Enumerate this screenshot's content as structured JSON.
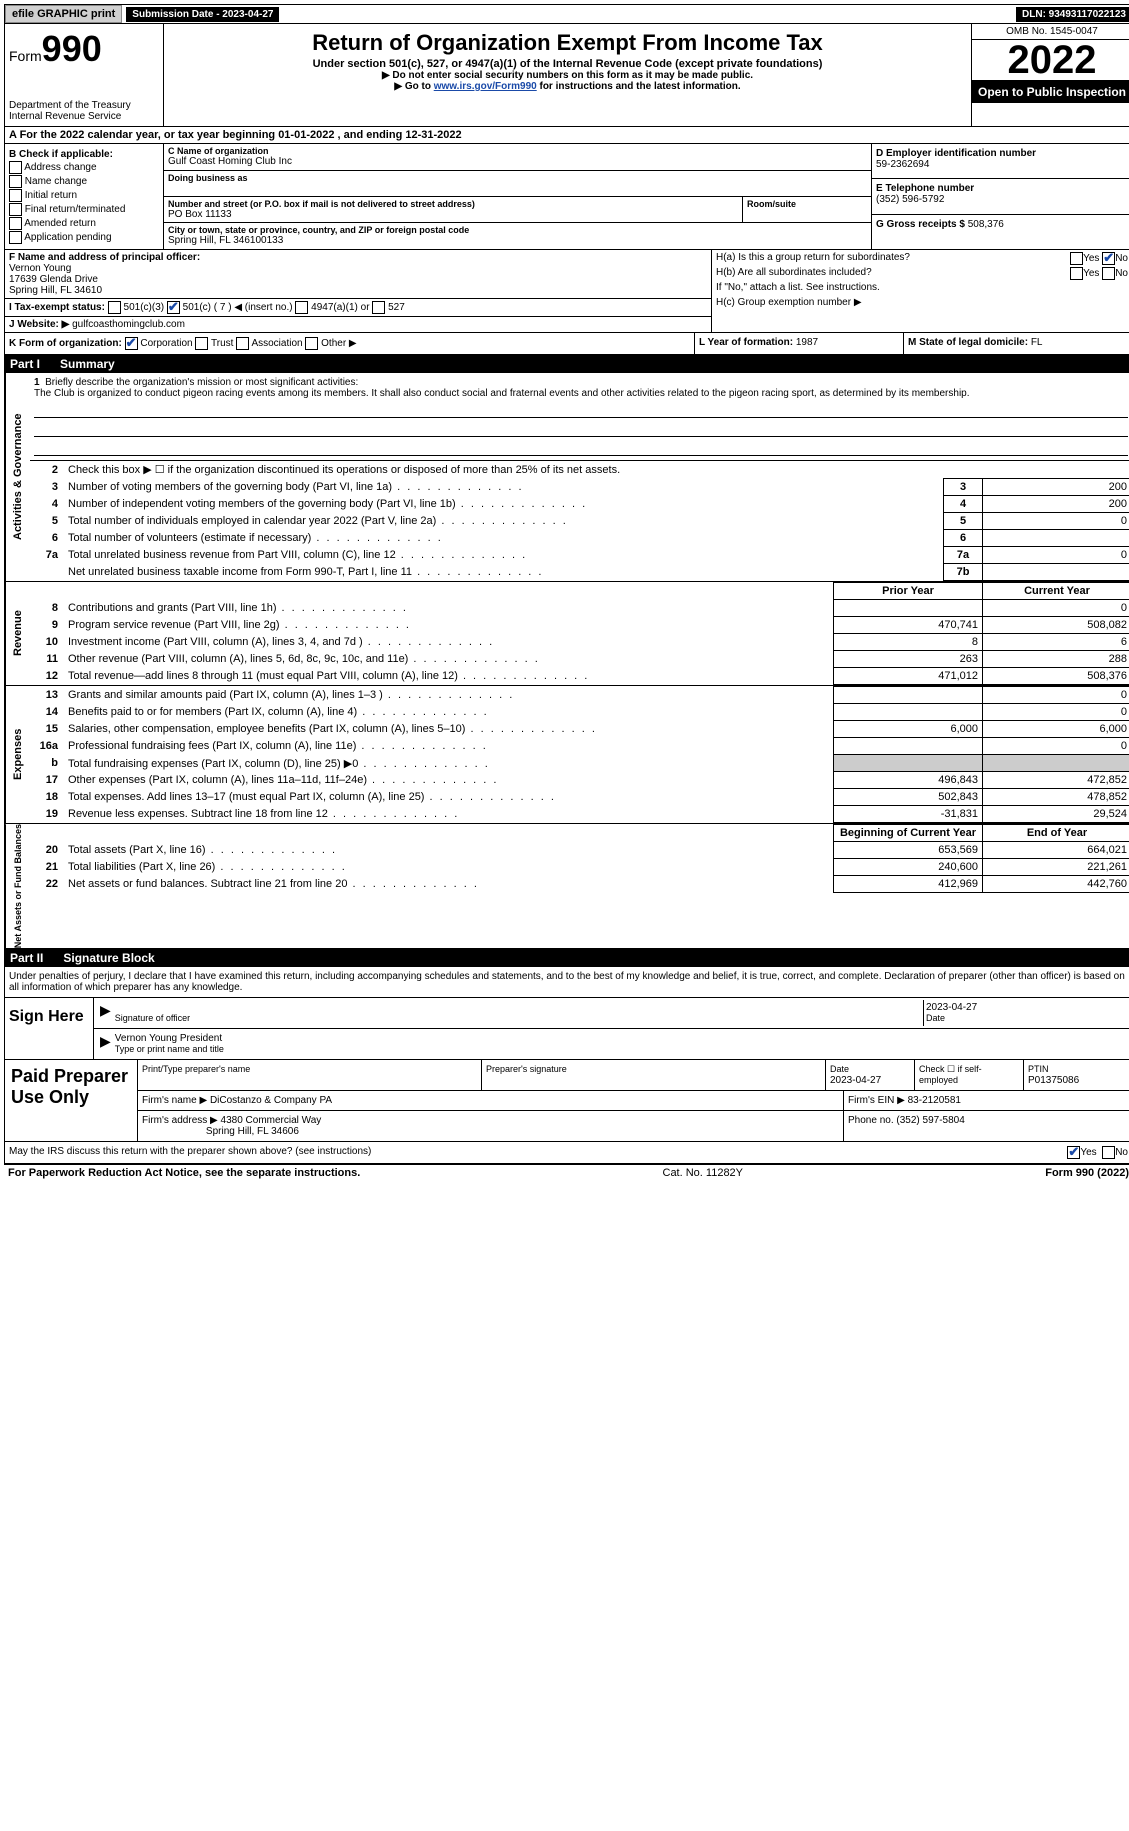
{
  "topbar": {
    "efile": "efile GRAPHIC print",
    "submission": "Submission Date - 2023-04-27",
    "dln": "DLN: 93493117022123"
  },
  "header": {
    "form_prefix": "Form",
    "form_number": "990",
    "dept": "Department of the Treasury",
    "irs": "Internal Revenue Service",
    "title": "Return of Organization Exempt From Income Tax",
    "subtitle": "Under section 501(c), 527, or 4947(a)(1) of the Internal Revenue Code (except private foundations)",
    "note1": "▶ Do not enter social security numbers on this form as it may be made public.",
    "note2_pre": "▶ Go to ",
    "note2_link": "www.irs.gov/Form990",
    "note2_post": " for instructions and the latest information.",
    "omb": "OMB No. 1545-0047",
    "year": "2022",
    "open": "Open to Public Inspection"
  },
  "row_a": "A For the 2022 calendar year, or tax year beginning 01-01-2022    , and ending 12-31-2022",
  "col_b": {
    "header": "B Check if applicable:",
    "items": [
      "Address change",
      "Name change",
      "Initial return",
      "Final return/terminated",
      "Amended return",
      "Application pending"
    ]
  },
  "col_c": {
    "name_hdr": "C Name of organization",
    "name": "Gulf Coast Homing Club Inc",
    "dba_hdr": "Doing business as",
    "addr_hdr": "Number and street (or P.O. box if mail is not delivered to street address)",
    "room_hdr": "Room/suite",
    "addr": "PO Box 11133",
    "city_hdr": "City or town, state or province, country, and ZIP or foreign postal code",
    "city": "Spring Hill, FL  346100133"
  },
  "col_d": {
    "ein_hdr": "D Employer identification number",
    "ein": "59-2362694",
    "tel_hdr": "E Telephone number",
    "tel": "(352) 596-5792",
    "gross_hdr": "G Gross receipts $",
    "gross": "508,376"
  },
  "section_f": {
    "hdr": "F  Name and address of principal officer:",
    "name": "Vernon Young",
    "addr1": "17639 Glenda Drive",
    "addr2": "Spring Hill, FL  34610"
  },
  "section_h": {
    "ha": "H(a)  Is this a group return for subordinates?",
    "hb": "H(b)  Are all subordinates included?",
    "hb_note": "If \"No,\" attach a list. See instructions.",
    "hc": "H(c)  Group exemption number ▶",
    "yes": "Yes",
    "no": "No"
  },
  "row_i": {
    "label": "I  Tax-exempt status:",
    "opt1": "501(c)(3)",
    "opt2": "501(c) ( 7 ) ◀ (insert no.)",
    "opt3": "4947(a)(1) or",
    "opt4": "527"
  },
  "row_j": {
    "label": "J  Website: ▶",
    "value": "gulfcoasthomingclub.com"
  },
  "row_k": {
    "label": "K Form of organization:",
    "corp": "Corporation",
    "trust": "Trust",
    "assoc": "Association",
    "other": "Other ▶"
  },
  "row_l": {
    "label": "L Year of formation:",
    "value": "1987"
  },
  "row_m": {
    "label": "M State of legal domicile:",
    "value": "FL"
  },
  "part1": {
    "label": "Part I",
    "title": "Summary"
  },
  "mission": {
    "num": "1",
    "label": "Briefly describe the organization's mission or most significant activities:",
    "text": "The Club is organized to conduct pigeon racing events among its members. It shall also conduct social and fraternal events and other activities related to the pigeon racing sport, as determined by its membership."
  },
  "line2": {
    "num": "2",
    "text": "Check this box ▶ ☐  if the organization discontinued its operations or disposed of more than 25% of its net assets."
  },
  "governance_rows": [
    {
      "num": "3",
      "text": "Number of voting members of the governing body (Part VI, line 1a)",
      "box": "3",
      "val": "200"
    },
    {
      "num": "4",
      "text": "Number of independent voting members of the governing body (Part VI, line 1b)",
      "box": "4",
      "val": "200"
    },
    {
      "num": "5",
      "text": "Total number of individuals employed in calendar year 2022 (Part V, line 2a)",
      "box": "5",
      "val": "0"
    },
    {
      "num": "6",
      "text": "Total number of volunteers (estimate if necessary)",
      "box": "6",
      "val": ""
    },
    {
      "num": "7a",
      "text": "Total unrelated business revenue from Part VIII, column (C), line 12",
      "box": "7a",
      "val": "0"
    },
    {
      "num": "",
      "text": "Net unrelated business taxable income from Form 990-T, Part I, line 11",
      "box": "7b",
      "val": ""
    }
  ],
  "revenue_header": {
    "prior": "Prior Year",
    "current": "Current Year"
  },
  "revenue_rows": [
    {
      "num": "8",
      "text": "Contributions and grants (Part VIII, line 1h)",
      "prior": "",
      "current": "0"
    },
    {
      "num": "9",
      "text": "Program service revenue (Part VIII, line 2g)",
      "prior": "470,741",
      "current": "508,082"
    },
    {
      "num": "10",
      "text": "Investment income (Part VIII, column (A), lines 3, 4, and 7d )",
      "prior": "8",
      "current": "6"
    },
    {
      "num": "11",
      "text": "Other revenue (Part VIII, column (A), lines 5, 6d, 8c, 9c, 10c, and 11e)",
      "prior": "263",
      "current": "288"
    },
    {
      "num": "12",
      "text": "Total revenue—add lines 8 through 11 (must equal Part VIII, column (A), line 12)",
      "prior": "471,012",
      "current": "508,376"
    }
  ],
  "expense_rows": [
    {
      "num": "13",
      "text": "Grants and similar amounts paid (Part IX, column (A), lines 1–3 )",
      "prior": "",
      "current": "0"
    },
    {
      "num": "14",
      "text": "Benefits paid to or for members (Part IX, column (A), line 4)",
      "prior": "",
      "current": "0"
    },
    {
      "num": "15",
      "text": "Salaries, other compensation, employee benefits (Part IX, column (A), lines 5–10)",
      "prior": "6,000",
      "current": "6,000"
    },
    {
      "num": "16a",
      "text": "Professional fundraising fees (Part IX, column (A), line 11e)",
      "prior": "",
      "current": "0"
    },
    {
      "num": "b",
      "text": "Total fundraising expenses (Part IX, column (D), line 25) ▶0",
      "prior": "SHADED",
      "current": "SHADED"
    },
    {
      "num": "17",
      "text": "Other expenses (Part IX, column (A), lines 11a–11d, 11f–24e)",
      "prior": "496,843",
      "current": "472,852"
    },
    {
      "num": "18",
      "text": "Total expenses. Add lines 13–17 (must equal Part IX, column (A), line 25)",
      "prior": "502,843",
      "current": "478,852"
    },
    {
      "num": "19",
      "text": "Revenue less expenses. Subtract line 18 from line 12",
      "prior": "-31,831",
      "current": "29,524"
    }
  ],
  "netassets_header": {
    "begin": "Beginning of Current Year",
    "end": "End of Year"
  },
  "netassets_rows": [
    {
      "num": "20",
      "text": "Total assets (Part X, line 16)",
      "prior": "653,569",
      "current": "664,021"
    },
    {
      "num": "21",
      "text": "Total liabilities (Part X, line 26)",
      "prior": "240,600",
      "current": "221,261"
    },
    {
      "num": "22",
      "text": "Net assets or fund balances. Subtract line 21 from line 20",
      "prior": "412,969",
      "current": "442,760"
    }
  ],
  "vtabs": {
    "gov": "Activities & Governance",
    "rev": "Revenue",
    "exp": "Expenses",
    "net": "Net Assets or Fund Balances"
  },
  "part2": {
    "label": "Part II",
    "title": "Signature Block"
  },
  "sig_decl": "Under penalties of perjury, I declare that I have examined this return, including accompanying schedules and statements, and to the best of my knowledge and belief, it is true, correct, and complete. Declaration of preparer (other than officer) is based on all information of which preparer has any knowledge.",
  "sign": {
    "label": "Sign Here",
    "sig_of_officer": "Signature of officer",
    "date_lbl": "Date",
    "date": "2023-04-27",
    "name": "Vernon Young  President",
    "type_lbl": "Type or print name and title"
  },
  "preparer": {
    "label": "Paid Preparer Use Only",
    "print_hdr": "Print/Type preparer's name",
    "sig_hdr": "Preparer's signature",
    "date_hdr": "Date",
    "date": "2023-04-27",
    "check_hdr": "Check ☐ if self-employed",
    "ptin_hdr": "PTIN",
    "ptin": "P01375086",
    "firm_name_lbl": "Firm's name    ▶",
    "firm_name": "DiCostanzo & Company PA",
    "firm_ein_lbl": "Firm's EIN ▶",
    "firm_ein": "83-2120581",
    "firm_addr_lbl": "Firm's address ▶",
    "firm_addr1": "4380 Commercial Way",
    "firm_addr2": "Spring Hill, FL  34606",
    "phone_lbl": "Phone no.",
    "phone": "(352) 597-5804"
  },
  "discuss": {
    "text": "May the IRS discuss this return with the preparer shown above? (see instructions)",
    "yes": "Yes",
    "no": "No"
  },
  "footer": {
    "left": "For Paperwork Reduction Act Notice, see the separate instructions.",
    "mid": "Cat. No. 11282Y",
    "right": "Form 990 (2022)"
  }
}
